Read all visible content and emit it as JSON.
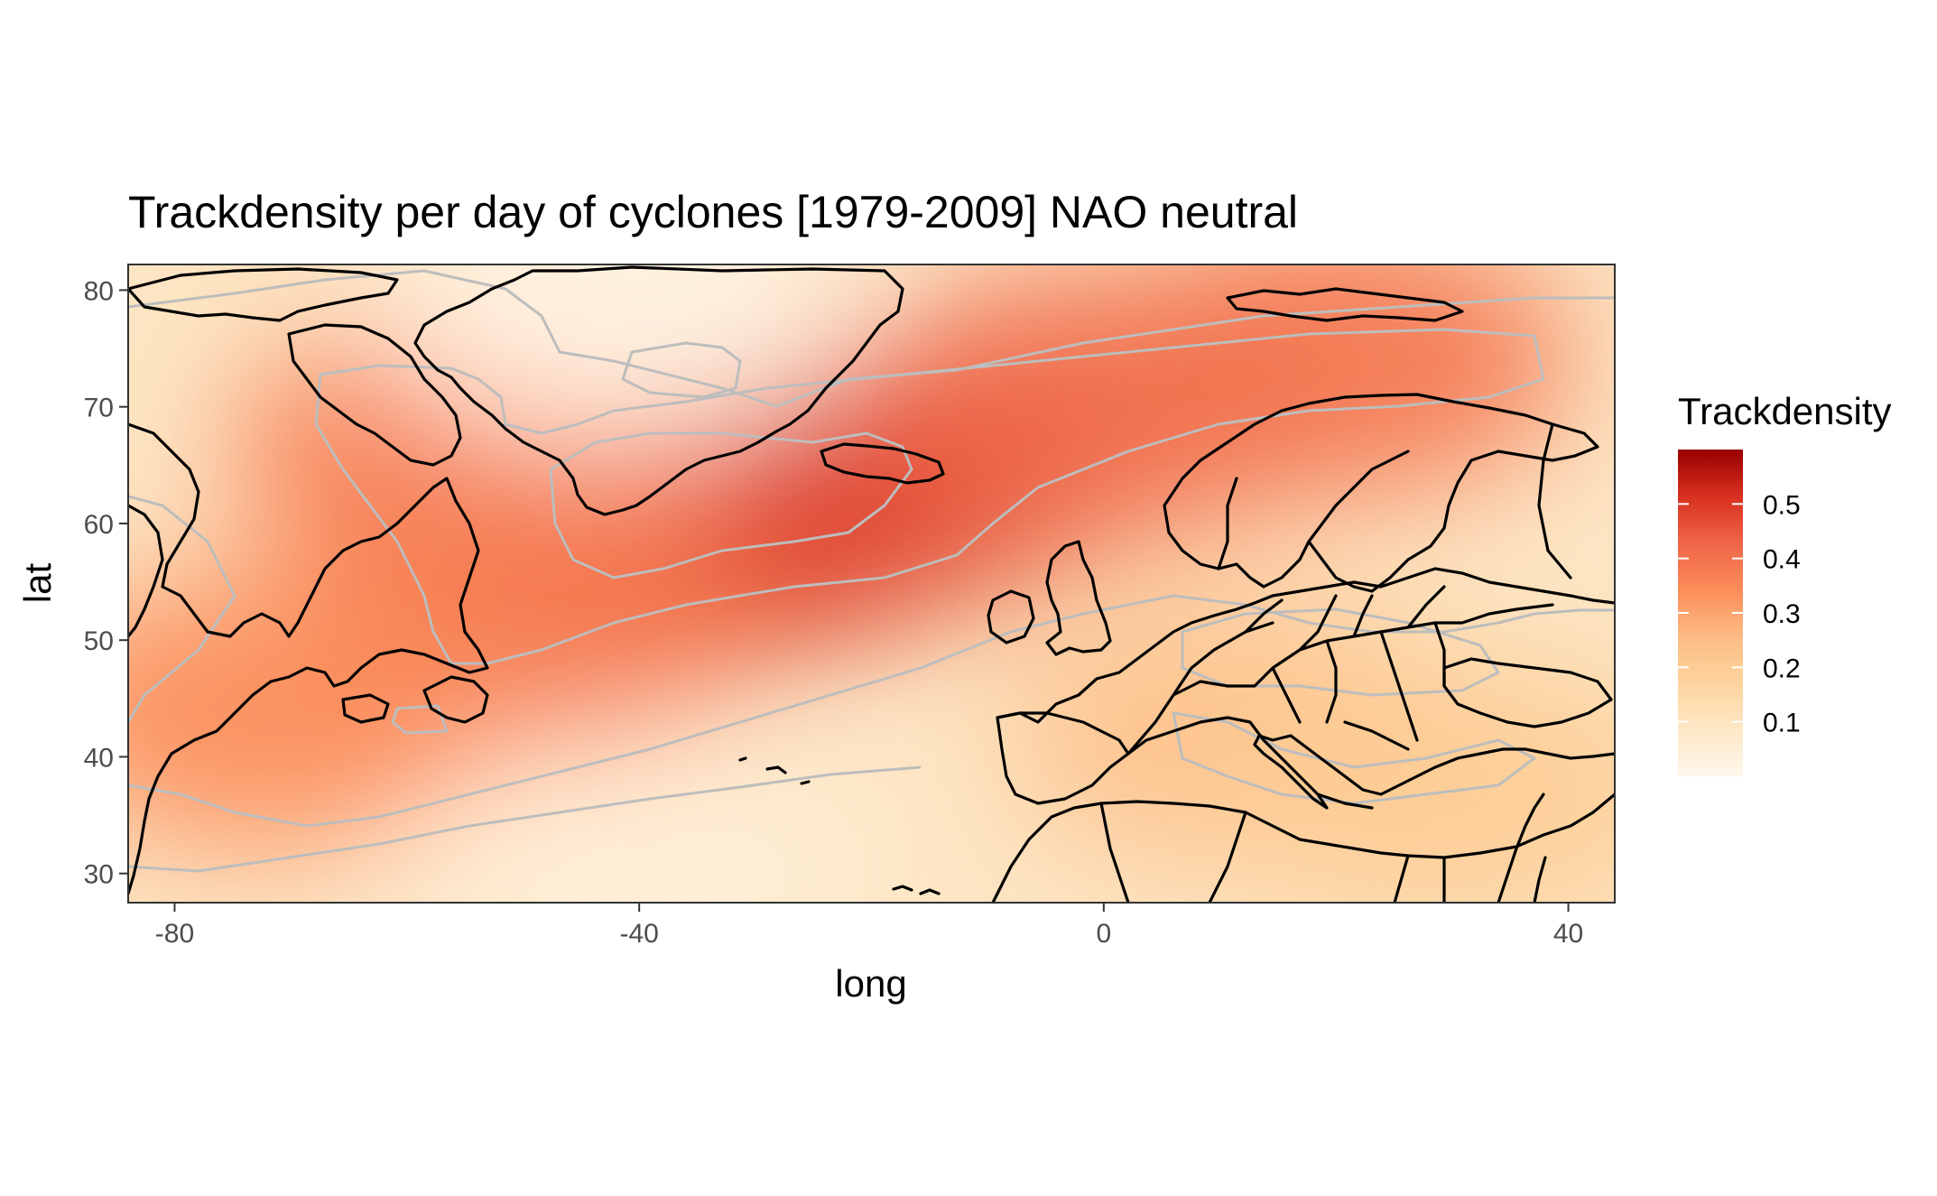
{
  "chart_data": {
    "type": "heatmap",
    "title": "Trackdensity per day of cyclones [1979-2009] NAO neutral",
    "xlabel": "long",
    "ylabel": "lat",
    "xlim": [
      -84,
      44
    ],
    "ylim": [
      27.5,
      82.2
    ],
    "x_ticks": [
      {
        "value": -80,
        "label": "-80"
      },
      {
        "value": -40,
        "label": "-40"
      },
      {
        "value": 0,
        "label": "0"
      },
      {
        "value": 40,
        "label": "40"
      }
    ],
    "y_ticks": [
      {
        "value": 30,
        "label": "30"
      },
      {
        "value": 40,
        "label": "40"
      },
      {
        "value": 50,
        "label": "50"
      },
      {
        "value": 60,
        "label": "60"
      },
      {
        "value": 70,
        "label": "70"
      },
      {
        "value": 80,
        "label": "80"
      }
    ],
    "legend": {
      "title": "Trackdensity",
      "position": "right",
      "range": [
        0,
        0.6
      ],
      "breaks": [
        {
          "value": 0.1,
          "label": "0.1"
        },
        {
          "value": 0.2,
          "label": "0.2"
        },
        {
          "value": 0.3,
          "label": "0.3"
        },
        {
          "value": 0.4,
          "label": "0.4"
        },
        {
          "value": 0.5,
          "label": "0.5"
        }
      ],
      "colors": [
        "#fff7ec",
        "#fee8c8",
        "#fdd49e",
        "#fdbb84",
        "#fc8d59",
        "#ef6548",
        "#d7301f",
        "#990000"
      ]
    },
    "density_centers": [
      {
        "lon": -30,
        "lat": 62,
        "value": 0.6
      },
      {
        "lon": -38,
        "lat": 58,
        "value": 0.5
      },
      {
        "lon": -18,
        "lat": 64,
        "value": 0.48
      },
      {
        "lon": 0,
        "lat": 70,
        "value": 0.42
      },
      {
        "lon": 20,
        "lat": 74,
        "value": 0.4
      },
      {
        "lon": -55,
        "lat": 66,
        "value": 0.38
      },
      {
        "lon": -50,
        "lat": 52,
        "value": 0.38
      },
      {
        "lon": -72,
        "lat": 44,
        "value": 0.35
      },
      {
        "lon": -42,
        "lat": 78,
        "value": 0.02
      },
      {
        "lon": 12,
        "lat": 42,
        "value": 0.24
      },
      {
        "lon": 30,
        "lat": 37,
        "value": 0.2
      },
      {
        "lon": -40,
        "lat": 30,
        "value": 0.05
      }
    ],
    "contour_color": "#bdbdbd",
    "coastline_color": "#000000",
    "grid": false
  }
}
